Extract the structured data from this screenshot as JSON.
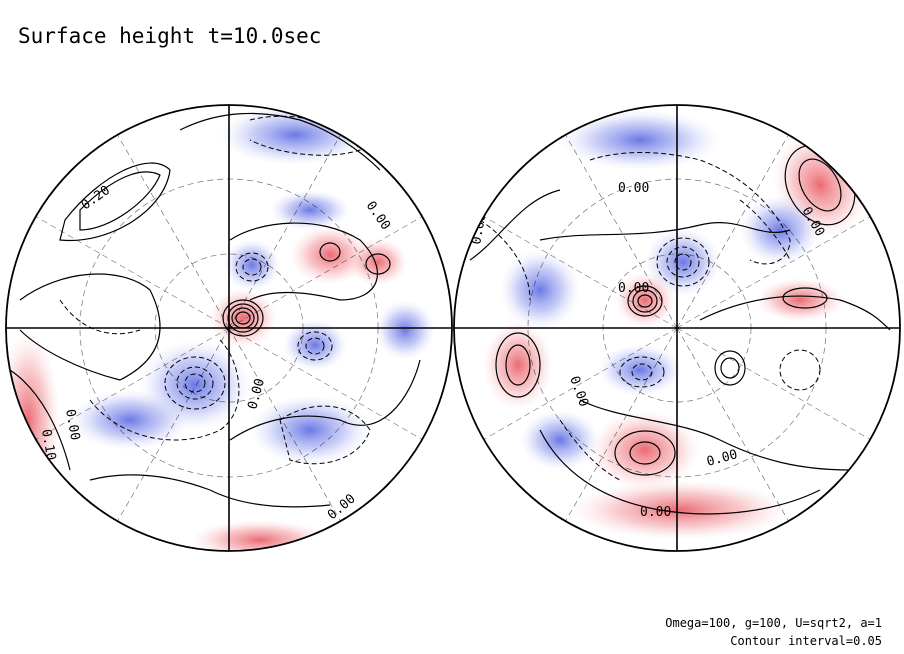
{
  "title": "Surface height t=10.0sec",
  "footer": {
    "params": "Omega=100, g=100, U=sqrt2, a=1",
    "contour_interval": "Contour interval=0.05"
  },
  "colors": {
    "positive": "#e8505a",
    "negative": "#5060e0",
    "background": "#ffffff",
    "contour": "#000000"
  },
  "chart_data": {
    "type": "heatmap",
    "projection": "two hemispheres (polar view)",
    "contour_interval": 0.05,
    "contour_labels": [
      "0.10",
      "0.20",
      "0.00",
      "0.00",
      "0.10",
      "0.00",
      "0.00",
      "0.00",
      "0.00",
      "0.00",
      "0.00",
      "0.00",
      "0.00",
      "0.00"
    ],
    "hemispheres": [
      {
        "features": [
          {
            "sign": "positive",
            "amplitude": 0.3,
            "lon": 0,
            "r": 0.05
          },
          {
            "sign": "positive",
            "amplitude": 0.15,
            "lon": 40,
            "r": 0.5
          },
          {
            "sign": "positive",
            "amplitude": 0.1,
            "lon": 60,
            "r": 0.65
          },
          {
            "sign": "negative",
            "amplitude": 0.2,
            "lon": 220,
            "r": 0.5
          },
          {
            "sign": "negative",
            "amplitude": 0.1,
            "lon": 120,
            "r": 0.4
          },
          {
            "sign": "negative",
            "amplitude": 0.1,
            "lon": 350,
            "r": 0.35
          },
          {
            "sign": "positive",
            "amplitude": 0.1,
            "lon": 270,
            "r": 0.95
          }
        ]
      },
      {
        "features": [
          {
            "sign": "positive",
            "amplitude": 0.25,
            "lon": 140,
            "r": 0.2
          },
          {
            "sign": "negative",
            "amplitude": 0.15,
            "lon": 20,
            "r": 0.35
          },
          {
            "sign": "positive",
            "amplitude": 0.2,
            "lon": 60,
            "r": 0.8
          },
          {
            "sign": "positive",
            "amplitude": 0.2,
            "lon": 240,
            "r": 0.6
          },
          {
            "sign": "positive",
            "amplitude": 0.15,
            "lon": 180,
            "r": 0.75
          },
          {
            "sign": "negative",
            "amplitude": 0.15,
            "lon": 200,
            "r": 0.3
          }
        ]
      }
    ]
  }
}
